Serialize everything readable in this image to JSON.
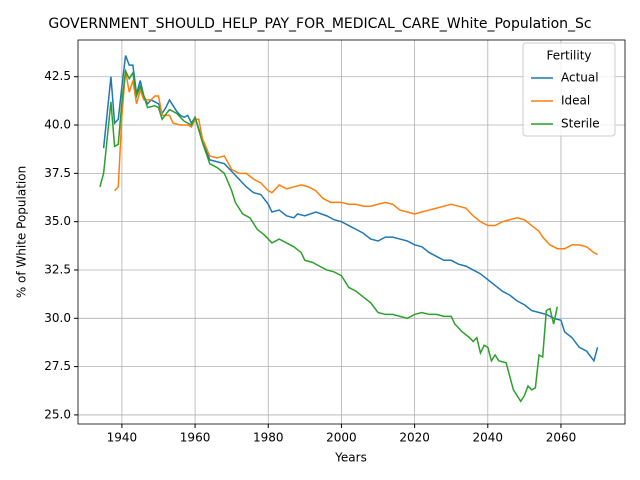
{
  "chart_data": {
    "type": "line",
    "title": "GOVERNMENT_SHOULD_HELP_PAY_FOR_MEDICAL_CARE_White_Population_Sc",
    "xlabel": "Years",
    "ylabel": "% of White Population",
    "legend_title": "Fertility",
    "legend": "upper right",
    "grid": true,
    "xlim": [
      1928,
      2077.5
    ],
    "ylim": [
      24.53,
      44.4
    ],
    "xticks": [
      1940,
      1960,
      1980,
      2000,
      2020,
      2040,
      2060
    ],
    "yticks": [
      {
        "value": 25,
        "label": "25.0"
      },
      {
        "value": 27.5,
        "label": "27.5"
      },
      {
        "value": 30,
        "label": "30.0"
      },
      {
        "value": 32.5,
        "label": "32.5"
      },
      {
        "value": 35,
        "label": "35.0"
      },
      {
        "value": 37.5,
        "label": "37.5"
      },
      {
        "value": 40,
        "label": "40.0"
      },
      {
        "value": 42.5,
        "label": "42.5"
      }
    ],
    "series": [
      {
        "name": "Actual",
        "color": "#1f77b4",
        "x": [
          1935,
          1937,
          1938,
          1939,
          1940,
          1941,
          1942,
          1943,
          1944,
          1945,
          1946,
          1947,
          1948,
          1949,
          1950,
          1951,
          1952,
          1953,
          1954,
          1955,
          1956,
          1957,
          1958,
          1959,
          1960,
          1962,
          1964,
          1966,
          1968,
          1970,
          1972,
          1974,
          1976,
          1978,
          1980,
          1981,
          1983,
          1985,
          1987,
          1988,
          1990,
          1993,
          1996,
          1998,
          2000,
          2002,
          2004,
          2006,
          2008,
          2010,
          2012,
          2014,
          2016,
          2018,
          2020,
          2022,
          2024,
          2026,
          2028,
          2030,
          2032,
          2034,
          2036,
          2038,
          2040,
          2042,
          2044,
          2046,
          2048,
          2050,
          2052,
          2054,
          2056,
          2058,
          2060,
          2061,
          2063,
          2065,
          2067,
          2069,
          2070
        ],
        "values": [
          38.8,
          42.5,
          40.1,
          40.3,
          42.0,
          43.6,
          43.1,
          43.1,
          41.6,
          42.3,
          41.5,
          41.1,
          41.3,
          41.2,
          41.1,
          40.6,
          40.9,
          41.3,
          41.0,
          40.7,
          40.5,
          40.4,
          40.5,
          40.1,
          40.4,
          39.2,
          38.2,
          38.1,
          38.0,
          37.6,
          37.2,
          36.8,
          36.5,
          36.4,
          35.9,
          35.5,
          35.6,
          35.3,
          35.2,
          35.4,
          35.3,
          35.5,
          35.3,
          35.1,
          35.0,
          34.8,
          34.6,
          34.4,
          34.1,
          34.0,
          34.2,
          34.2,
          34.1,
          34.0,
          33.8,
          33.7,
          33.4,
          33.2,
          33.0,
          33.0,
          32.8,
          32.7,
          32.5,
          32.3,
          32.0,
          31.7,
          31.4,
          31.2,
          30.9,
          30.7,
          30.4,
          30.3,
          30.2,
          30.0,
          29.9,
          29.3,
          29.0,
          28.5,
          28.3,
          27.8,
          28.5
        ]
      },
      {
        "name": "Ideal",
        "color": "#ff7f0e",
        "x": [
          1938,
          1939,
          1940,
          1941,
          1942,
          1943,
          1944,
          1945,
          1946,
          1948,
          1949,
          1950,
          1951,
          1953,
          1954,
          1956,
          1958,
          1959,
          1960,
          1961,
          1962,
          1964,
          1966,
          1968,
          1970,
          1972,
          1974,
          1976,
          1978,
          1980,
          1981,
          1983,
          1985,
          1987,
          1989,
          1991,
          1993,
          1995,
          1997,
          2000,
          2002,
          2004,
          2006,
          2008,
          2010,
          2012,
          2014,
          2016,
          2018,
          2020,
          2022,
          2024,
          2026,
          2028,
          2030,
          2032,
          2034,
          2036,
          2038,
          2040,
          2042,
          2044,
          2046,
          2048,
          2050,
          2052,
          2054,
          2055,
          2057,
          2059,
          2061,
          2063,
          2065,
          2067,
          2069,
          2070
        ],
        "values": [
          36.6,
          36.8,
          40.5,
          42.8,
          41.7,
          42.3,
          41.1,
          41.8,
          41.3,
          41.3,
          41.5,
          41.5,
          40.5,
          40.5,
          40.1,
          40.0,
          40.0,
          39.9,
          40.3,
          40.3,
          39.3,
          38.4,
          38.3,
          38.4,
          37.7,
          37.5,
          37.5,
          37.2,
          37.0,
          36.6,
          36.5,
          36.9,
          36.7,
          36.8,
          36.9,
          36.8,
          36.6,
          36.2,
          36.0,
          36.0,
          35.9,
          35.9,
          35.8,
          35.8,
          35.9,
          36.0,
          35.9,
          35.6,
          35.5,
          35.4,
          35.5,
          35.6,
          35.7,
          35.8,
          35.9,
          35.8,
          35.7,
          35.3,
          35.0,
          34.8,
          34.8,
          35.0,
          35.1,
          35.2,
          35.1,
          34.8,
          34.5,
          34.2,
          33.8,
          33.6,
          33.6,
          33.8,
          33.8,
          33.7,
          33.4,
          33.3
        ]
      },
      {
        "name": "Sterile",
        "color": "#2ca02c",
        "x": [
          1934,
          1935,
          1937,
          1938,
          1939,
          1940,
          1941,
          1942,
          1943,
          1944,
          1945,
          1946,
          1947,
          1949,
          1950,
          1951,
          1953,
          1955,
          1957,
          1959,
          1960,
          1962,
          1964,
          1966,
          1968,
          1970,
          1971,
          1973,
          1975,
          1977,
          1979,
          1981,
          1983,
          1985,
          1987,
          1989,
          1990,
          1992,
          1994,
          1996,
          1998,
          2000,
          2002,
          2004,
          2006,
          2008,
          2010,
          2012,
          2014,
          2016,
          2018,
          2020,
          2022,
          2024,
          2026,
          2028,
          2030,
          2031,
          2033,
          2035,
          2036,
          2037,
          2038,
          2039,
          2040,
          2041,
          2042,
          2043,
          2045,
          2047,
          2049,
          2050,
          2051,
          2052,
          2053,
          2054,
          2055,
          2056,
          2057,
          2058,
          2059
        ],
        "values": [
          36.8,
          37.5,
          41.2,
          38.9,
          39.0,
          41.2,
          42.8,
          42.4,
          42.7,
          41.5,
          42.0,
          41.5,
          40.9,
          41.0,
          40.9,
          40.3,
          40.8,
          40.6,
          40.2,
          40.0,
          40.4,
          39.1,
          38.0,
          37.8,
          37.5,
          36.6,
          36.0,
          35.4,
          35.2,
          34.6,
          34.3,
          33.9,
          34.1,
          33.9,
          33.7,
          33.4,
          33.0,
          32.9,
          32.7,
          32.5,
          32.4,
          32.2,
          31.6,
          31.4,
          31.1,
          30.8,
          30.3,
          30.2,
          30.2,
          30.1,
          30.0,
          30.2,
          30.3,
          30.2,
          30.2,
          30.1,
          30.1,
          29.7,
          29.3,
          29.0,
          28.8,
          29.0,
          28.2,
          28.6,
          28.5,
          27.8,
          28.1,
          27.8,
          27.7,
          26.3,
          25.7,
          26.0,
          26.5,
          26.3,
          26.4,
          28.1,
          28.0,
          30.4,
          30.5,
          29.7,
          30.6
        ]
      }
    ]
  }
}
